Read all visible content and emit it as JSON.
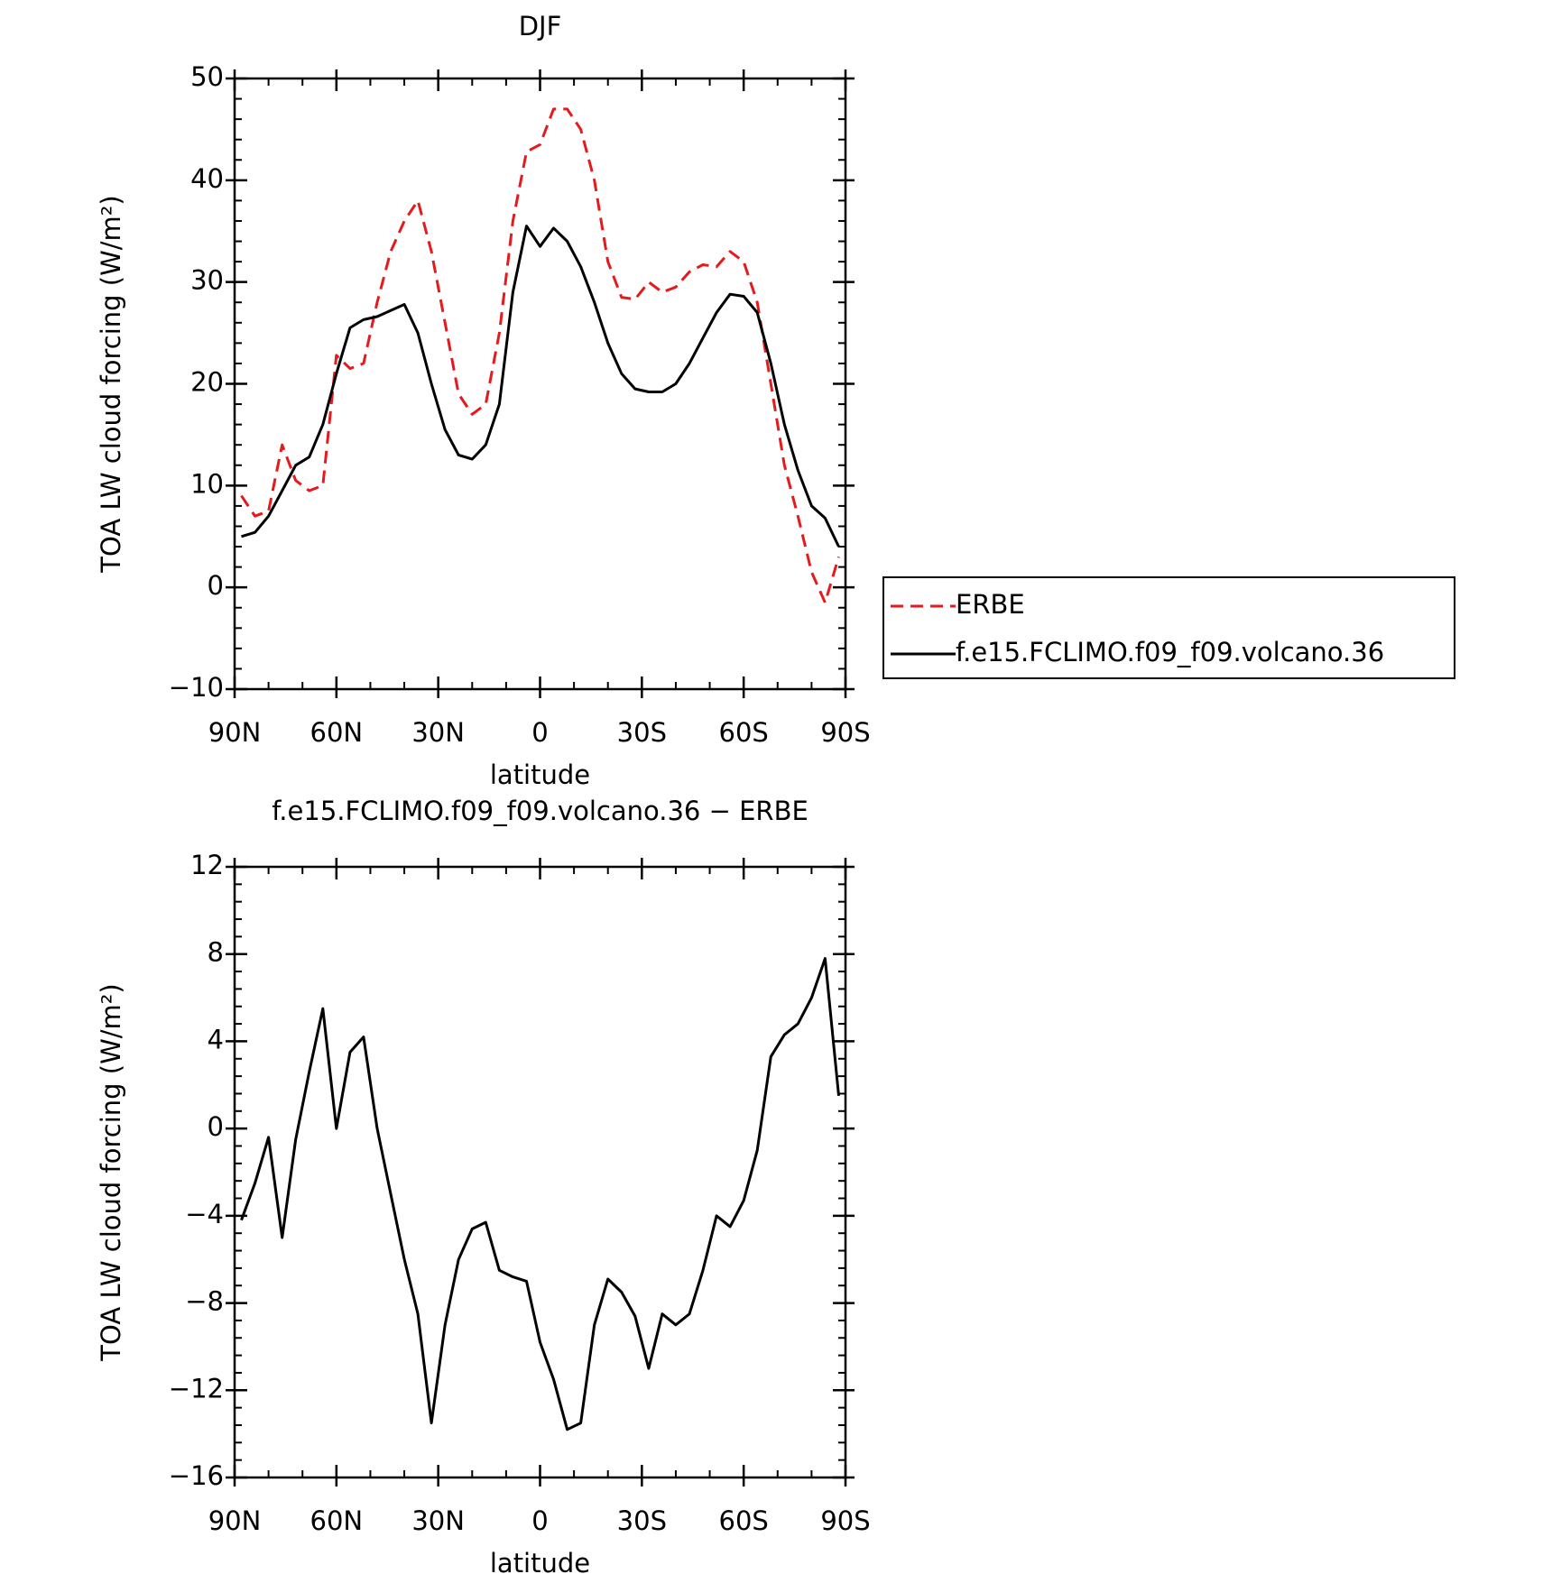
{
  "chart_data": [
    {
      "type": "line",
      "title": "DJF",
      "xlabel": "latitude",
      "ylabel": "TOA LW cloud forcing (W/m²)",
      "x": [
        88,
        84,
        80,
        76,
        72,
        68,
        64,
        60,
        56,
        52,
        48,
        44,
        40,
        36,
        32,
        28,
        24,
        20,
        16,
        12,
        8,
        4,
        0,
        -4,
        -8,
        -12,
        -16,
        -20,
        -24,
        -28,
        -32,
        -36,
        -40,
        -44,
        -48,
        -52,
        -56,
        -60,
        -64,
        -68,
        -72,
        -76,
        -80,
        -84,
        -88
      ],
      "xlim": [
        90,
        -90
      ],
      "xticks": [
        {
          "value": 90,
          "label": "90N"
        },
        {
          "value": 60,
          "label": "60N"
        },
        {
          "value": 30,
          "label": "30N"
        },
        0,
        {
          "value": -30,
          "label": "30S"
        },
        {
          "value": -60,
          "label": "60S"
        },
        {
          "value": -90,
          "label": "90S"
        }
      ],
      "ylim": [
        -10,
        50
      ],
      "yticks": [
        {
          "value": -10,
          "label": "−10"
        },
        0,
        10,
        20,
        30,
        40,
        50
      ],
      "legend": "outside-right",
      "series": [
        {
          "name": "ERBE",
          "color": "#e41a1c",
          "line_style": "dashed",
          "values": [
            9,
            7,
            7.5,
            14,
            10.5,
            9.5,
            10,
            22.8,
            21.5,
            22,
            28,
            33,
            36,
            38,
            33,
            26,
            19,
            17,
            18,
            25,
            36,
            42.8,
            43.5,
            47,
            47,
            45,
            40,
            32,
            28.5,
            28.3,
            30,
            29,
            29.5,
            31,
            31.7,
            31.5,
            33,
            32,
            28,
            20,
            12,
            7,
            1.5,
            -1.5,
            3
          ]
        },
        {
          "name": "f.e15.FCLIMO.f09_f09.volcano.36",
          "color": "#000000",
          "line_style": "solid",
          "values": [
            5,
            5.4,
            7,
            9.5,
            12,
            12.8,
            16,
            21,
            25.5,
            26.3,
            26.6,
            27.2,
            27.8,
            25,
            20,
            15.5,
            13,
            12.6,
            14,
            18,
            29,
            35.5,
            33.5,
            35.3,
            34,
            31.5,
            28,
            24,
            21,
            19.5,
            19.2,
            19.2,
            20,
            22,
            24.5,
            27,
            28.8,
            28.6,
            27,
            22,
            16,
            11.5,
            8,
            6.8,
            4
          ]
        }
      ]
    },
    {
      "type": "line",
      "title": "f.e15.FCLIMO.f09_f09.volcano.36 − ERBE",
      "xlabel": "latitude",
      "ylabel": "TOA LW cloud forcing (W/m²)",
      "x": [
        88,
        84,
        80,
        76,
        72,
        68,
        64,
        60,
        56,
        52,
        48,
        44,
        40,
        36,
        32,
        28,
        24,
        20,
        16,
        12,
        8,
        4,
        0,
        -4,
        -8,
        -12,
        -16,
        -20,
        -24,
        -28,
        -32,
        -36,
        -40,
        -44,
        -48,
        -52,
        -56,
        -60,
        -64,
        -68,
        -72,
        -76,
        -80,
        -84,
        -88
      ],
      "xlim": [
        90,
        -90
      ],
      "xticks": [
        {
          "value": 90,
          "label": "90N"
        },
        {
          "value": 60,
          "label": "60N"
        },
        {
          "value": 30,
          "label": "30N"
        },
        0,
        {
          "value": -30,
          "label": "30S"
        },
        {
          "value": -60,
          "label": "60S"
        },
        {
          "value": -90,
          "label": "90S"
        }
      ],
      "ylim": [
        -16,
        12
      ],
      "yticks": [
        {
          "value": -16,
          "label": "−16"
        },
        {
          "value": -12,
          "label": "−12"
        },
        {
          "value": -8,
          "label": "−8"
        },
        {
          "value": -4,
          "label": "−4"
        },
        0,
        4,
        8,
        12
      ],
      "color": "#000000",
      "values": [
        -4.2,
        -2.5,
        -0.4,
        -5,
        -0.5,
        2.6,
        5.5,
        0,
        3.5,
        4.2,
        0,
        -3,
        -6,
        -8.5,
        -13.5,
        -9,
        -6,
        -4.6,
        -4.3,
        -6.5,
        -6.8,
        -7,
        -9.8,
        -11.5,
        -13.8,
        -13.5,
        -9,
        -6.9,
        -7.5,
        -8.6,
        -11,
        -8.5,
        -9,
        -8.5,
        -6.5,
        -4,
        -4.5,
        -3.3,
        -1,
        3.3,
        4.3,
        4.8,
        6,
        7.8,
        1.5
      ]
    }
  ]
}
